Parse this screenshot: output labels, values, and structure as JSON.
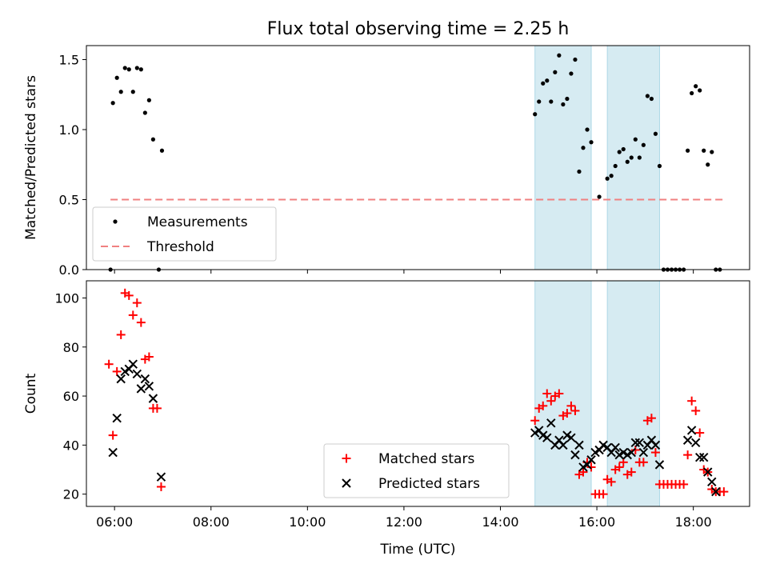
{
  "chart_data": [
    {
      "type": "scatter",
      "title": "Flux total observing time = 2.25 h",
      "xlabel": "",
      "ylabel": "Matched/Predicted stars",
      "xlim": [
        "05:25",
        "19:10"
      ],
      "ylim": [
        0,
        1.6
      ],
      "yticks": [
        0.0,
        0.5,
        1.0,
        1.5
      ],
      "ytick_labels": [
        "0.0",
        "0.5",
        "1.0",
        "1.5"
      ],
      "shaded_intervals": [
        [
          "14:43",
          "15:53"
        ],
        [
          "16:13",
          "17:18"
        ]
      ],
      "legend": {
        "placement": "lower-left",
        "entries": [
          "Measurements",
          "Threshold"
        ]
      },
      "series": [
        {
          "name": "Measurements",
          "marker": "dot",
          "color": "#000000",
          "points": [
            [
              "05:55",
              0.0
            ],
            [
              "05:58",
              1.19
            ],
            [
              "06:03",
              1.37
            ],
            [
              "06:08",
              1.27
            ],
            [
              "06:13",
              1.44
            ],
            [
              "06:18",
              1.43
            ],
            [
              "06:23",
              1.27
            ],
            [
              "06:28",
              1.44
            ],
            [
              "06:33",
              1.43
            ],
            [
              "06:38",
              1.12
            ],
            [
              "06:43",
              1.21
            ],
            [
              "06:48",
              0.93
            ],
            [
              "06:55",
              0.0
            ],
            [
              "06:59",
              0.85
            ],
            [
              "14:43",
              1.11
            ],
            [
              "14:48",
              1.2
            ],
            [
              "14:53",
              1.33
            ],
            [
              "14:58",
              1.35
            ],
            [
              "15:03",
              1.2
            ],
            [
              "15:08",
              1.41
            ],
            [
              "15:13",
              1.53
            ],
            [
              "15:18",
              1.18
            ],
            [
              "15:23",
              1.22
            ],
            [
              "15:28",
              1.4
            ],
            [
              "15:33",
              1.5
            ],
            [
              "15:38",
              0.7
            ],
            [
              "15:43",
              0.87
            ],
            [
              "15:48",
              1.0
            ],
            [
              "15:53",
              0.91
            ],
            [
              "16:03",
              0.52
            ],
            [
              "16:13",
              0.65
            ],
            [
              "16:18",
              0.67
            ],
            [
              "16:23",
              0.74
            ],
            [
              "16:28",
              0.84
            ],
            [
              "16:33",
              0.86
            ],
            [
              "16:38",
              0.77
            ],
            [
              "16:43",
              0.8
            ],
            [
              "16:48",
              0.93
            ],
            [
              "16:53",
              0.8
            ],
            [
              "16:58",
              0.89
            ],
            [
              "17:03",
              1.24
            ],
            [
              "17:08",
              1.22
            ],
            [
              "17:13",
              0.97
            ],
            [
              "17:18",
              0.74
            ],
            [
              "17:23",
              0.0
            ],
            [
              "17:28",
              0.0
            ],
            [
              "17:33",
              0.0
            ],
            [
              "17:38",
              0.0
            ],
            [
              "17:43",
              0.0
            ],
            [
              "17:48",
              0.0
            ],
            [
              "17:53",
              0.85
            ],
            [
              "17:58",
              1.26
            ],
            [
              "18:03",
              1.31
            ],
            [
              "18:08",
              1.28
            ],
            [
              "18:13",
              0.85
            ],
            [
              "18:18",
              0.75
            ],
            [
              "18:23",
              0.84
            ],
            [
              "18:28",
              0.0
            ],
            [
              "18:33",
              0.0
            ]
          ]
        },
        {
          "name": "Threshold",
          "marker": "dashed-line",
          "color": "#f08080",
          "points": [
            [
              "05:55",
              0.5
            ],
            [
              "18:38",
              0.5
            ]
          ]
        }
      ]
    },
    {
      "type": "scatter",
      "title": "",
      "xlabel": "Time (UTC)",
      "ylabel": "Count",
      "xlim": [
        "05:25",
        "19:10"
      ],
      "ylim": [
        15,
        107
      ],
      "yticks": [
        20,
        40,
        60,
        80,
        100
      ],
      "ytick_labels": [
        "20",
        "40",
        "60",
        "80",
        "100"
      ],
      "xticks": [
        "06:00",
        "08:00",
        "10:00",
        "12:00",
        "14:00",
        "16:00",
        "18:00"
      ],
      "xtick_labels": [
        "06:00",
        "08:00",
        "10:00",
        "12:00",
        "14:00",
        "16:00",
        "18:00"
      ],
      "shaded_intervals": [
        [
          "14:43",
          "15:53"
        ],
        [
          "16:13",
          "17:18"
        ]
      ],
      "legend": {
        "placement": "lower-center",
        "entries": [
          "Matched stars",
          "Predicted stars"
        ]
      },
      "series": [
        {
          "name": "Matched stars",
          "marker": "plus",
          "color": "#ff0000",
          "points": [
            [
              "05:53",
              73
            ],
            [
              "05:58",
              44
            ],
            [
              "06:03",
              70
            ],
            [
              "06:08",
              85
            ],
            [
              "06:13",
              102
            ],
            [
              "06:18",
              101
            ],
            [
              "06:23",
              93
            ],
            [
              "06:28",
              98
            ],
            [
              "06:33",
              90
            ],
            [
              "06:38",
              75
            ],
            [
              "06:43",
              76
            ],
            [
              "06:48",
              55
            ],
            [
              "06:53",
              55
            ],
            [
              "06:58",
              23
            ],
            [
              "14:43",
              50
            ],
            [
              "14:48",
              55
            ],
            [
              "14:53",
              56
            ],
            [
              "14:58",
              61
            ],
            [
              "15:03",
              58
            ],
            [
              "15:08",
              60
            ],
            [
              "15:13",
              61
            ],
            [
              "15:18",
              52
            ],
            [
              "15:23",
              53
            ],
            [
              "15:28",
              56
            ],
            [
              "15:33",
              54
            ],
            [
              "15:38",
              28
            ],
            [
              "15:43",
              29
            ],
            [
              "15:48",
              33
            ],
            [
              "15:53",
              31
            ],
            [
              "15:58",
              20
            ],
            [
              "16:03",
              20
            ],
            [
              "16:08",
              20
            ],
            [
              "16:13",
              26
            ],
            [
              "16:18",
              25
            ],
            [
              "16:23",
              30
            ],
            [
              "16:28",
              31
            ],
            [
              "16:33",
              33
            ],
            [
              "16:38",
              28
            ],
            [
              "16:43",
              29
            ],
            [
              "16:48",
              38
            ],
            [
              "16:53",
              33
            ],
            [
              "16:58",
              33
            ],
            [
              "17:03",
              50
            ],
            [
              "17:08",
              51
            ],
            [
              "17:13",
              37
            ],
            [
              "17:18",
              24
            ],
            [
              "17:23",
              24
            ],
            [
              "17:28",
              24
            ],
            [
              "17:33",
              24
            ],
            [
              "17:38",
              24
            ],
            [
              "17:43",
              24
            ],
            [
              "17:48",
              24
            ],
            [
              "17:53",
              36
            ],
            [
              "17:58",
              58
            ],
            [
              "18:03",
              54
            ],
            [
              "18:08",
              45
            ],
            [
              "18:13",
              30
            ],
            [
              "18:18",
              29
            ],
            [
              "18:23",
              22
            ],
            [
              "18:28",
              21
            ],
            [
              "18:33",
              21
            ],
            [
              "18:38",
              21
            ]
          ]
        },
        {
          "name": "Predicted stars",
          "marker": "x",
          "color": "#000000",
          "points": [
            [
              "05:58",
              37
            ],
            [
              "06:03",
              51
            ],
            [
              "06:08",
              67
            ],
            [
              "06:13",
              70
            ],
            [
              "06:18",
              71
            ],
            [
              "06:23",
              73
            ],
            [
              "06:28",
              69
            ],
            [
              "06:33",
              63
            ],
            [
              "06:38",
              67
            ],
            [
              "06:43",
              64
            ],
            [
              "06:48",
              59
            ],
            [
              "06:58",
              27
            ],
            [
              "14:43",
              45
            ],
            [
              "14:48",
              46
            ],
            [
              "14:53",
              44
            ],
            [
              "14:58",
              43
            ],
            [
              "15:03",
              49
            ],
            [
              "15:08",
              40
            ],
            [
              "15:13",
              42
            ],
            [
              "15:18",
              40
            ],
            [
              "15:23",
              44
            ],
            [
              "15:28",
              43
            ],
            [
              "15:33",
              36
            ],
            [
              "15:38",
              40
            ],
            [
              "15:43",
              31
            ],
            [
              "15:48",
              32
            ],
            [
              "15:53",
              34
            ],
            [
              "15:58",
              37
            ],
            [
              "16:03",
              38
            ],
            [
              "16:08",
              40
            ],
            [
              "16:13",
              39
            ],
            [
              "16:18",
              37
            ],
            [
              "16:23",
              39
            ],
            [
              "16:28",
              36
            ],
            [
              "16:33",
              37
            ],
            [
              "16:38",
              36
            ],
            [
              "16:43",
              37
            ],
            [
              "16:48",
              41
            ],
            [
              "16:53",
              41
            ],
            [
              "16:58",
              37
            ],
            [
              "17:03",
              40
            ],
            [
              "17:08",
              42
            ],
            [
              "17:13",
              40
            ],
            [
              "17:18",
              32
            ],
            [
              "17:53",
              42
            ],
            [
              "17:58",
              46
            ],
            [
              "18:03",
              41
            ],
            [
              "18:08",
              35
            ],
            [
              "18:13",
              35
            ],
            [
              "18:18",
              29
            ],
            [
              "18:23",
              25
            ],
            [
              "18:28",
              21
            ]
          ]
        }
      ]
    }
  ]
}
